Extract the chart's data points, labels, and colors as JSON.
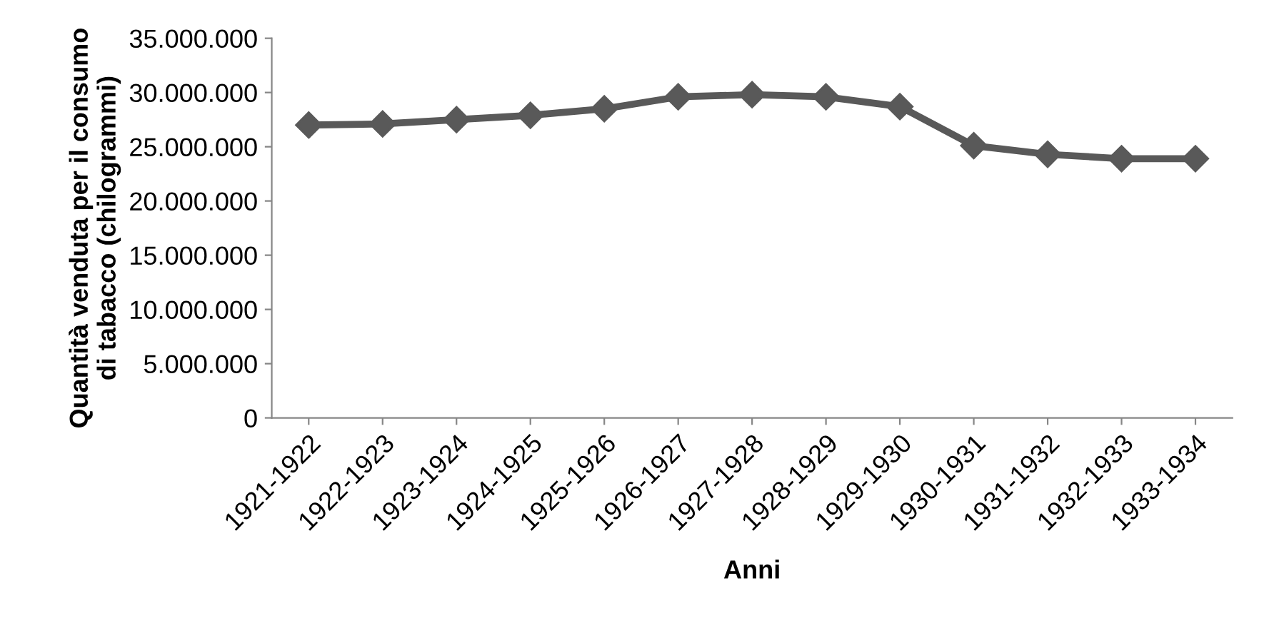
{
  "chart_data": {
    "type": "line",
    "xlabel": "Anni",
    "ylabel": "Quantità venduta per il consumo\ndi tabacco (chilogrammi)",
    "categories": [
      "1921-1922",
      "1922-1923",
      "1923-1924",
      "1924-1925",
      "1925-1926",
      "1926-1927",
      "1927-1928",
      "1928-1929",
      "1929-1930",
      "1930-1931",
      "1931-1932",
      "1932-1933",
      "1933-1934"
    ],
    "series": [
      {
        "color": "#595959",
        "values": [
          27000000,
          27100000,
          27500000,
          27900000,
          28500000,
          29600000,
          29800000,
          29600000,
          28700000,
          25100000,
          24300000,
          23900000,
          23900000
        ]
      }
    ],
    "ylim": [
      0,
      35000000
    ],
    "yticks": [
      {
        "value": 0,
        "label": "0"
      },
      {
        "value": 5000000,
        "label": "5.000.000"
      },
      {
        "value": 10000000,
        "label": "10.000.000"
      },
      {
        "value": 15000000,
        "label": "15.000.000"
      },
      {
        "value": 20000000,
        "label": "20.000.000"
      },
      {
        "value": 25000000,
        "label": "25.000.000"
      },
      {
        "value": 30000000,
        "label": "30.000.000"
      },
      {
        "value": 35000000,
        "label": "35.000.000"
      }
    ],
    "grid": false,
    "legend": false,
    "marker": "diamond",
    "line_style": "solid"
  }
}
